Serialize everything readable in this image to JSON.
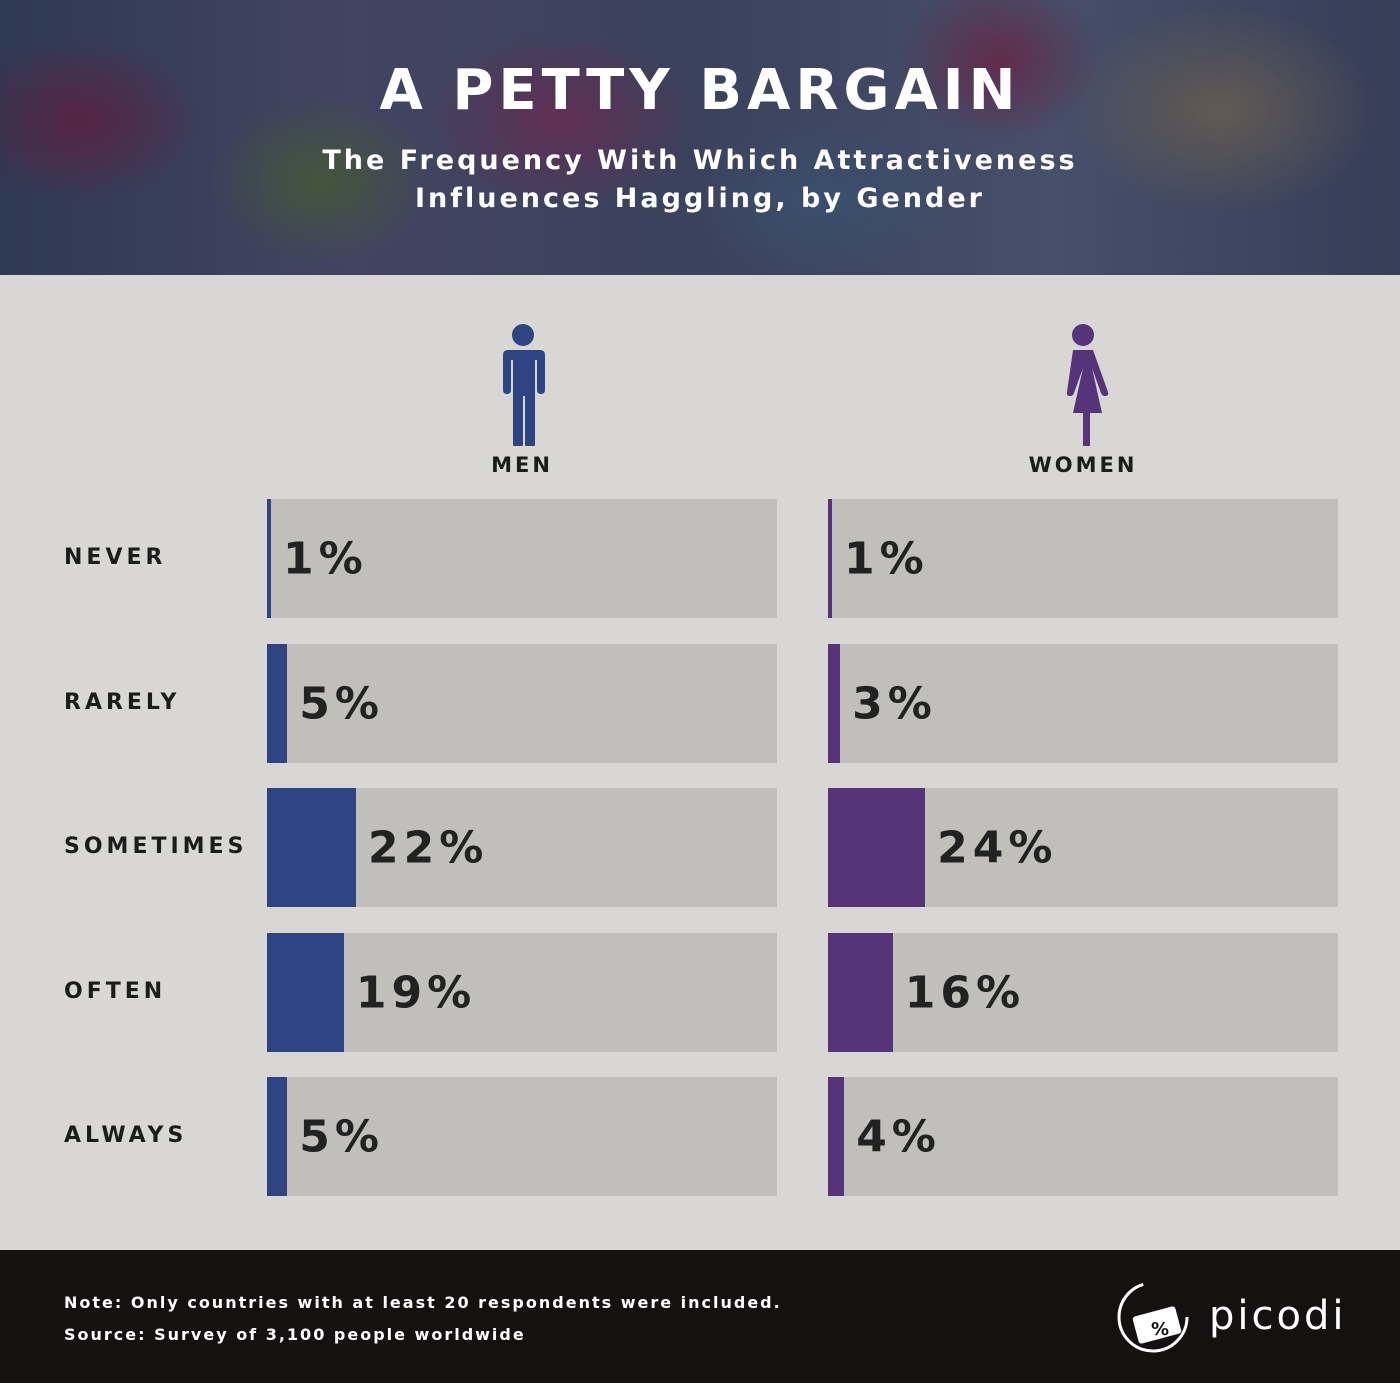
{
  "header": {
    "title": "A PETTY BARGAIN",
    "subtitle_line1": "The Frequency With Which Attractiveness",
    "subtitle_line2": "Influences Haggling, by Gender"
  },
  "footer": {
    "note": "Note: Only countries with at least 20 respondents were included.",
    "source": "Source: Survey of 3,100 people worldwide",
    "logo": "picodi"
  },
  "chart_data": {
    "type": "bar",
    "orientation": "horizontal",
    "title": "The Frequency With Which Attractiveness Influences Haggling, by Gender",
    "categories": [
      "NEVER",
      "RARELY",
      "SOMETIMES",
      "OFTEN",
      "ALWAYS"
    ],
    "series": [
      {
        "name": "MEN",
        "color": "#2f4583",
        "values": [
          1,
          5,
          22,
          19,
          5
        ],
        "labels": [
          "1%",
          "5%",
          "22%",
          "19%",
          "5%"
        ]
      },
      {
        "name": "WOMEN",
        "color": "#55347a",
        "values": [
          1,
          3,
          24,
          16,
          4
        ],
        "labels": [
          "1%",
          "3%",
          "24%",
          "16%",
          "4%"
        ]
      }
    ],
    "xlim": [
      0,
      126
    ],
    "track_color": "#c0bfbb"
  }
}
